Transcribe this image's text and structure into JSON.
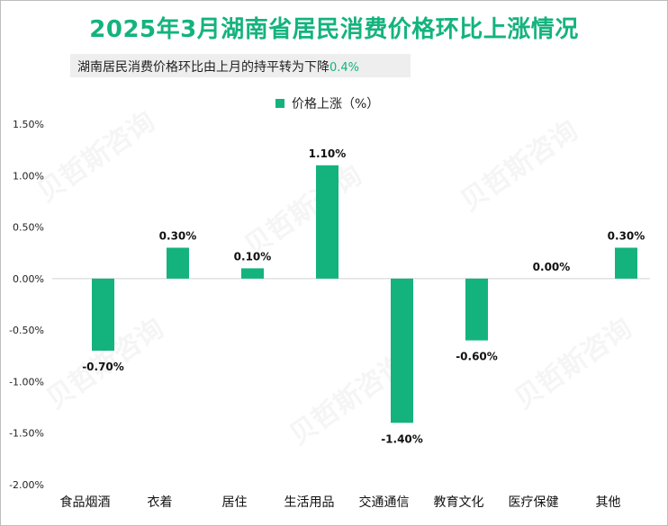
{
  "chart_data": {
    "type": "bar",
    "title": "2025年3月湖南省居民消费价格环比上涨情况",
    "subtitle": {
      "text": "湖南居民消费价格环比由上月的持平转为下降",
      "highlight": "0.4%"
    },
    "legend": [
      "价格上涨（%）"
    ],
    "legend_position": "top-center",
    "categories": [
      "食品烟酒",
      "衣着",
      "居住",
      "生活用品",
      "交通通信",
      "教育文化",
      "医疗保健",
      "其他"
    ],
    "series": [
      {
        "name": "价格上涨（%）",
        "values": [
          -0.7,
          0.3,
          0.1,
          1.1,
          -1.4,
          -0.6,
          0.0,
          0.3
        ]
      }
    ],
    "data_labels": [
      "-0.70%",
      "0.30%",
      "0.10%",
      "1.10%",
      "-1.40%",
      "-0.60%",
      "0.00%",
      "0.30%"
    ],
    "ylim": [
      -2.0,
      1.5
    ],
    "yticks": [
      "1.50%",
      "1.00%",
      "0.50%",
      "0.00%",
      "-0.50%",
      "-1.00%",
      "-1.50%",
      "-2.00%"
    ],
    "ytick_values": [
      1.5,
      1.0,
      0.5,
      0.0,
      -0.5,
      -1.0,
      -1.5,
      -2.0
    ],
    "xlabel": "",
    "ylabel": "",
    "grid": false,
    "bar_color": "#14b37e"
  },
  "watermark": "贝哲斯咨询"
}
